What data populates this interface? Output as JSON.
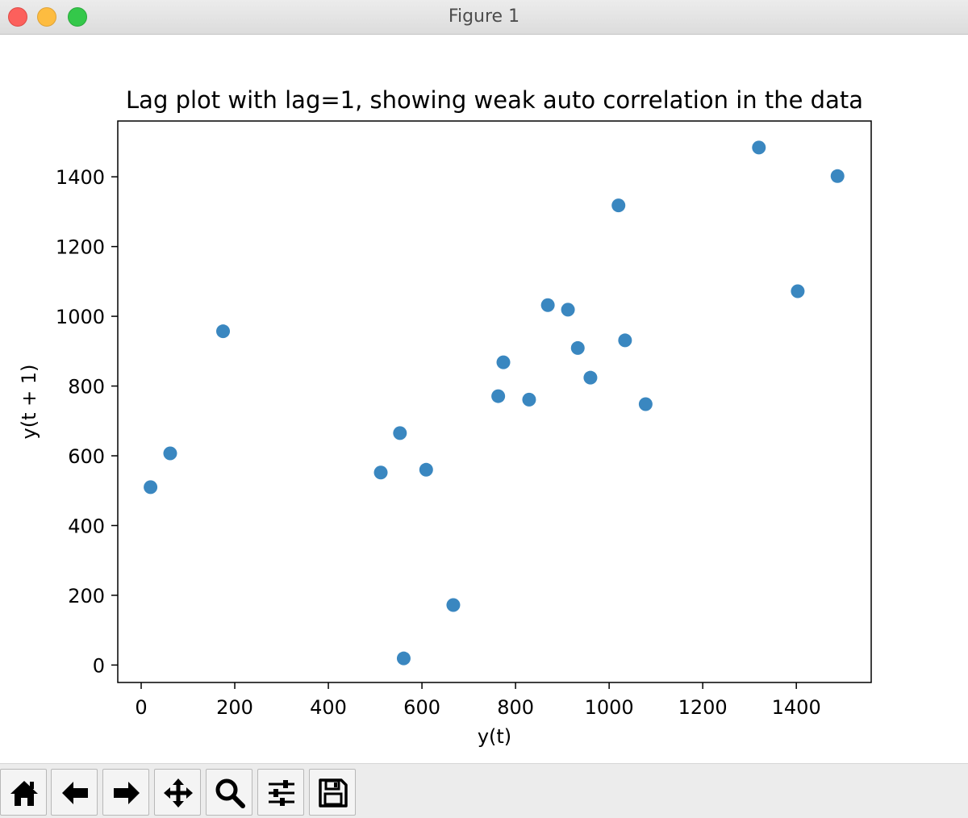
{
  "window": {
    "title": "Figure 1"
  },
  "toolbar": {
    "buttons": [
      {
        "name": "home-icon",
        "label": "home"
      },
      {
        "name": "back-arrow-icon",
        "label": "back"
      },
      {
        "name": "forward-arrow-icon",
        "label": "forward"
      },
      {
        "name": "pan-move-icon",
        "label": "pan"
      },
      {
        "name": "zoom-magnifier-icon",
        "label": "zoom"
      },
      {
        "name": "configure-sliders-icon",
        "label": "configure subplots"
      },
      {
        "name": "save-floppy-icon",
        "label": "save"
      }
    ]
  },
  "colors": {
    "point": "#3a87c0",
    "axes": "#000000",
    "titlebar_text": "#4d4d4d"
  },
  "chart_data": {
    "type": "scatter",
    "title": "Lag plot with lag=1, showing weak auto correlation in the data",
    "xlabel": "y(t)",
    "ylabel": "y(t + 1)",
    "xlim": [
      -50,
      1560
    ],
    "ylim": [
      -50,
      1560
    ],
    "xticks": [
      0,
      200,
      400,
      600,
      800,
      1000,
      1200,
      1400
    ],
    "yticks": [
      0,
      200,
      400,
      600,
      800,
      1000,
      1200,
      1400
    ],
    "grid": false,
    "legend": "none",
    "points": [
      {
        "x": 20,
        "y": 510
      },
      {
        "x": 62,
        "y": 607
      },
      {
        "x": 175,
        "y": 957
      },
      {
        "x": 512,
        "y": 552
      },
      {
        "x": 553,
        "y": 665
      },
      {
        "x": 561,
        "y": 19
      },
      {
        "x": 609,
        "y": 560
      },
      {
        "x": 667,
        "y": 172
      },
      {
        "x": 763,
        "y": 771
      },
      {
        "x": 774,
        "y": 868
      },
      {
        "x": 829,
        "y": 761
      },
      {
        "x": 869,
        "y": 1032
      },
      {
        "x": 912,
        "y": 1019
      },
      {
        "x": 933,
        "y": 909
      },
      {
        "x": 960,
        "y": 824
      },
      {
        "x": 1020,
        "y": 1318
      },
      {
        "x": 1034,
        "y": 931
      },
      {
        "x": 1078,
        "y": 748
      },
      {
        "x": 1320,
        "y": 1484
      },
      {
        "x": 1403,
        "y": 1072
      },
      {
        "x": 1488,
        "y": 1402
      }
    ]
  }
}
